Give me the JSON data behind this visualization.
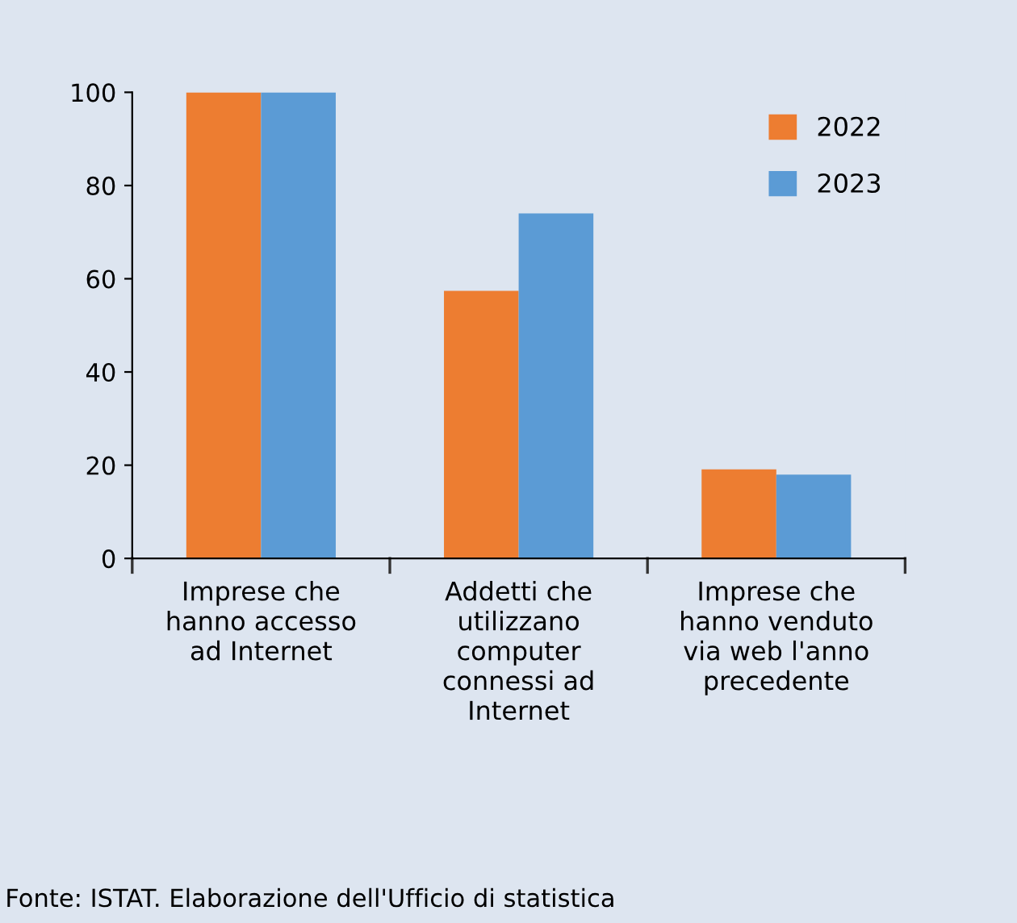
{
  "chart_data": {
    "type": "bar",
    "categories": [
      "Imprese che\nhanno accesso\nad Internet",
      "Addetti che\nutilizzano\ncomputer\nconnessi ad\nInternet",
      "Imprese che\nhanno venduto\nvia web l'anno\nprecedente"
    ],
    "series": [
      {
        "name": "2022",
        "color": "#ed7d31",
        "values": [
          100,
          57.4,
          19.1
        ]
      },
      {
        "name": "2023",
        "color": "#5b9bd5",
        "values": [
          100,
          74.0,
          18.0
        ]
      }
    ],
    "ylim": [
      0,
      100
    ],
    "yticks": [
      0,
      20,
      40,
      60,
      80,
      100
    ],
    "grid": false,
    "legend": "top right",
    "annotations": [
      "Fonte: ISTAT. Elaborazione dell'Ufficio di statistica"
    ]
  }
}
